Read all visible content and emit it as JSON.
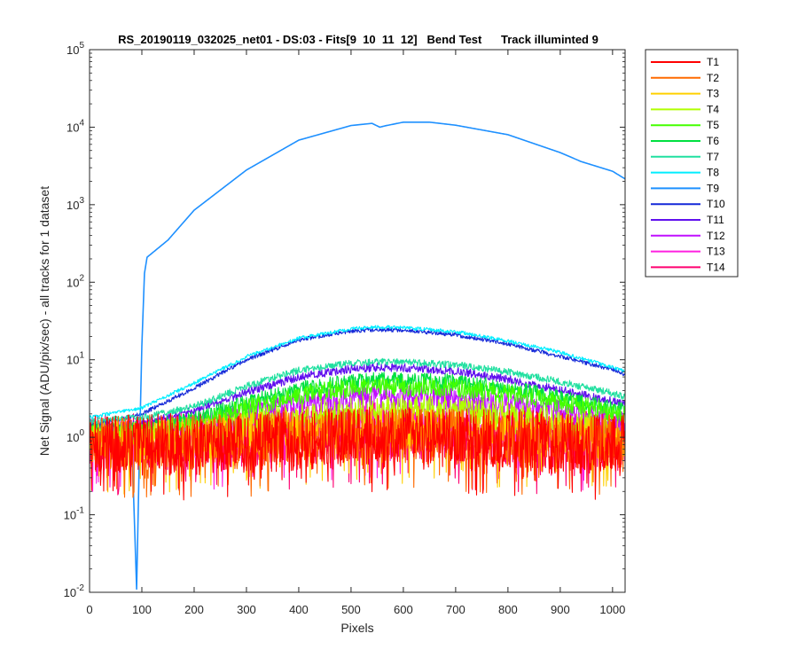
{
  "chart_data": {
    "type": "line",
    "title": "RS_20190119_032025_net01 - DS:03 - Fits[9  10  11  12]   Bend Test      Track illuminted 9",
    "xlabel": "Pixels",
    "ylabel": "Net Signal (ADU/pix/sec) - all tracks for 1 dataset",
    "xlim": [
      0,
      1024
    ],
    "ylim": [
      0.01,
      100000
    ],
    "yscale": "log",
    "grid": false,
    "legend_position": "outside-right-top",
    "x_ticks": [
      "0",
      "100",
      "200",
      "300",
      "400",
      "500",
      "600",
      "700",
      "800",
      "900",
      "1000"
    ],
    "y_ticks": [
      {
        "base": "10",
        "exp": "-2"
      },
      {
        "base": "10",
        "exp": "-1"
      },
      {
        "base": "10",
        "exp": "0"
      },
      {
        "base": "10",
        "exp": "1"
      },
      {
        "base": "10",
        "exp": "2"
      },
      {
        "base": "10",
        "exp": "3"
      },
      {
        "base": "10",
        "exp": "4"
      },
      {
        "base": "10",
        "exp": "5"
      }
    ],
    "series": [
      {
        "name": "T1",
        "color": "#ff0000",
        "x": [
          0,
          100,
          200,
          300,
          400,
          500,
          550,
          600,
          700,
          800,
          900,
          1000,
          1024
        ],
        "y": [
          0.8,
          0.8,
          0.8,
          0.85,
          0.9,
          0.95,
          0.95,
          0.95,
          0.95,
          0.9,
          0.85,
          0.8,
          0.8
        ],
        "noise": 0.9
      },
      {
        "name": "T2",
        "color": "#ff6a00",
        "x": [
          0,
          100,
          200,
          300,
          400,
          500,
          550,
          600,
          700,
          800,
          900,
          1000,
          1024
        ],
        "y": [
          0.8,
          0.85,
          0.85,
          0.9,
          1.0,
          1.05,
          1.05,
          1.05,
          1.0,
          0.95,
          0.9,
          0.85,
          0.8
        ],
        "noise": 0.8
      },
      {
        "name": "T3",
        "color": "#ffd000",
        "x": [
          0,
          100,
          200,
          300,
          400,
          500,
          550,
          600,
          700,
          800,
          900,
          1000,
          1024
        ],
        "y": [
          0.9,
          0.9,
          0.95,
          1.1,
          1.2,
          1.3,
          1.3,
          1.3,
          1.25,
          1.15,
          1.05,
          0.95,
          0.9
        ],
        "noise": 0.6
      },
      {
        "name": "T4",
        "color": "#b0ff00",
        "x": [
          0,
          100,
          200,
          300,
          400,
          500,
          550,
          600,
          700,
          800,
          900,
          1000,
          1024
        ],
        "y": [
          1.0,
          1.0,
          1.1,
          1.4,
          1.8,
          2.1,
          2.2,
          2.2,
          2.1,
          1.8,
          1.5,
          1.2,
          1.1
        ],
        "noise": 0.45
      },
      {
        "name": "T5",
        "color": "#44ff00",
        "x": [
          0,
          100,
          200,
          300,
          400,
          500,
          550,
          600,
          700,
          800,
          900,
          1000,
          1024
        ],
        "y": [
          1.1,
          1.2,
          1.5,
          2.4,
          3.5,
          4.3,
          4.5,
          4.5,
          4.3,
          3.6,
          2.8,
          2.1,
          1.9
        ],
        "noise": 0.28
      },
      {
        "name": "T6",
        "color": "#00e040",
        "x": [
          0,
          100,
          200,
          300,
          400,
          500,
          550,
          600,
          700,
          800,
          900,
          1000,
          1024
        ],
        "y": [
          1.2,
          1.3,
          1.7,
          2.8,
          4.2,
          5.2,
          5.5,
          5.5,
          5.2,
          4.4,
          3.3,
          2.4,
          2.2
        ],
        "noise": 0.22
      },
      {
        "name": "T7",
        "color": "#20e0a0",
        "x": [
          0,
          100,
          200,
          300,
          400,
          500,
          550,
          600,
          700,
          800,
          900,
          1000,
          1024
        ],
        "y": [
          1.6,
          1.8,
          2.5,
          4.6,
          7.3,
          9.0,
          9.4,
          9.3,
          8.6,
          7.0,
          5.2,
          3.7,
          3.3
        ],
        "noise": 0.1
      },
      {
        "name": "T8",
        "color": "#00eeff",
        "x": [
          0,
          100,
          200,
          300,
          400,
          500,
          550,
          600,
          700,
          800,
          900,
          1000,
          1024
        ],
        "y": [
          1.8,
          2.4,
          5.0,
          11.0,
          19.0,
          25.0,
          26.5,
          26.0,
          23.0,
          17.5,
          12.5,
          8.0,
          7.0
        ],
        "noise": 0.05
      },
      {
        "name": "T9",
        "color": "#1e90ff",
        "x": [
          0,
          80,
          90,
          95,
          100,
          105,
          110,
          150,
          200,
          300,
          400,
          500,
          540,
          555,
          565,
          600,
          650,
          700,
          800,
          900,
          940,
          1000,
          1024
        ],
        "y": [
          1.2,
          1.3,
          0.011,
          0.5,
          15,
          130,
          210,
          350,
          850,
          2800,
          6800,
          10500,
          11200,
          10000,
          10400,
          11600,
          11600,
          10600,
          8000,
          4700,
          3600,
          2700,
          2150
        ],
        "noise": 0.0
      },
      {
        "name": "T10",
        "color": "#1428d8",
        "x": [
          0,
          100,
          200,
          300,
          400,
          500,
          550,
          600,
          700,
          800,
          900,
          1000,
          1024
        ],
        "y": [
          1.4,
          2.0,
          4.3,
          10.0,
          18.0,
          23.5,
          24.5,
          24.0,
          21.0,
          16.0,
          11.0,
          7.5,
          6.5
        ],
        "noise": 0.06
      },
      {
        "name": "T11",
        "color": "#6010ee",
        "x": [
          0,
          100,
          200,
          300,
          400,
          500,
          550,
          600,
          700,
          800,
          900,
          1000,
          1024
        ],
        "y": [
          1.3,
          1.5,
          2.2,
          3.8,
          6.0,
          7.6,
          8.0,
          7.9,
          7.2,
          5.6,
          4.1,
          2.9,
          2.6
        ],
        "noise": 0.12
      },
      {
        "name": "T12",
        "color": "#c010ff",
        "x": [
          0,
          100,
          200,
          300,
          400,
          500,
          550,
          600,
          700,
          800,
          900,
          1000,
          1024
        ],
        "y": [
          1.1,
          1.2,
          1.4,
          2.0,
          2.7,
          3.3,
          3.5,
          3.4,
          3.1,
          2.6,
          2.1,
          1.7,
          1.5
        ],
        "noise": 0.35
      },
      {
        "name": "T13",
        "color": "#ff20e0",
        "x": [
          0,
          100,
          200,
          300,
          400,
          500,
          550,
          600,
          700,
          800,
          900,
          1000,
          1024
        ],
        "y": [
          0.9,
          1.0,
          1.0,
          1.1,
          1.3,
          1.5,
          1.5,
          1.5,
          1.4,
          1.3,
          1.15,
          1.0,
          0.95
        ],
        "noise": 0.65
      },
      {
        "name": "T14",
        "color": "#ff0070",
        "x": [
          0,
          100,
          200,
          300,
          400,
          500,
          550,
          600,
          700,
          800,
          900,
          1000,
          1024
        ],
        "y": [
          0.8,
          0.85,
          0.85,
          0.95,
          1.05,
          1.15,
          1.2,
          1.2,
          1.1,
          1.0,
          0.95,
          0.85,
          0.8
        ],
        "noise": 0.85
      }
    ]
  }
}
